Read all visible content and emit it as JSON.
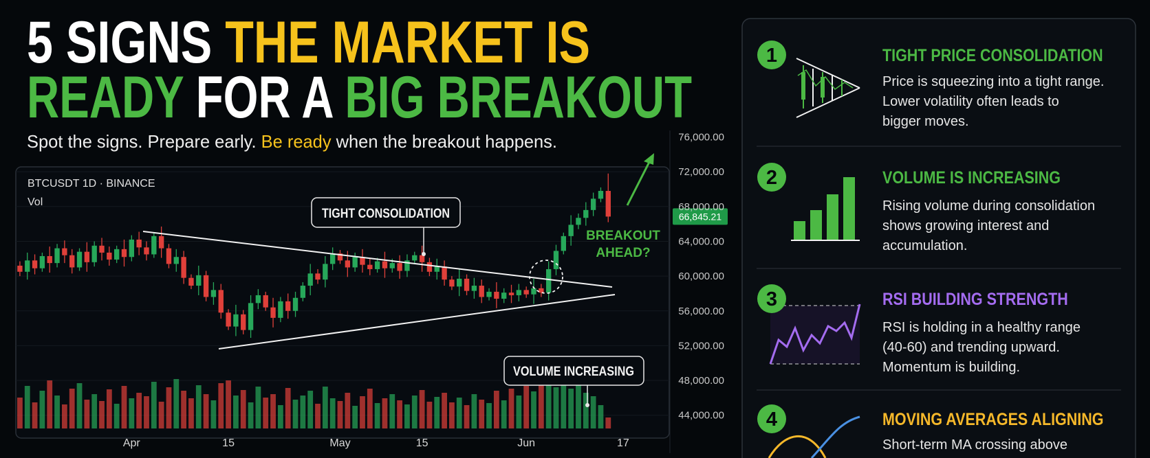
{
  "header": {
    "title": [
      [
        {
          "text": "5 SIGNS ",
          "color": "#ffffff"
        },
        {
          "text": "THE MARKET IS",
          "color": "#f6c21c"
        }
      ],
      [
        {
          "text": "READY",
          "color": "#4cb944"
        },
        {
          "text": " FOR A ",
          "color": "#ffffff"
        },
        {
          "text": "BIG BREAKOUT",
          "color": "#4cb944"
        }
      ]
    ],
    "subtitle": [
      {
        "text": "Spot the signs. Prepare early. ",
        "color": "#eeeeee"
      },
      {
        "text": "Be ready",
        "color": "#f6c21c"
      },
      {
        "text": " when the breakout happens.",
        "color": "#eeeeee"
      }
    ]
  },
  "chart_data": {
    "type": "candlestick",
    "symbol": "BTCUSDT 1D · BINANCE",
    "volume_label": "Vol",
    "up_color": "#27a85a",
    "down_color": "#e0403a",
    "ylim": [
      44000,
      76000
    ],
    "yticks": [
      {
        "value": 44000,
        "label": "44,000.00"
      },
      {
        "value": 48000,
        "label": "48,000.00"
      },
      {
        "value": 52000,
        "label": "52,000.00"
      },
      {
        "value": 56000,
        "label": "56,000.00"
      },
      {
        "value": 60000,
        "label": "60,000.00"
      },
      {
        "value": 64000,
        "label": "64,000.00"
      },
      {
        "value": 68000,
        "label": "68,000.00"
      },
      {
        "value": 72000,
        "label": "72,000.00"
      },
      {
        "value": 76000,
        "label": "76,000.00"
      }
    ],
    "grid": true,
    "last_price": {
      "value": 66845.21,
      "label": "66,845.21"
    },
    "annotations": {
      "consolidation": "TIGHT CONSOLIDATION",
      "volume": "VOLUME INCREASING",
      "breakout": [
        "BREAKOUT",
        "AHEAD?"
      ]
    },
    "categories": [
      null,
      null,
      null,
      null,
      null,
      null,
      null,
      null,
      null,
      null,
      null,
      null,
      null,
      null,
      null,
      "Apr",
      null,
      null,
      null,
      null,
      null,
      null,
      null,
      null,
      null,
      null,
      null,
      null,
      "15",
      null,
      null,
      null,
      null,
      null,
      null,
      null,
      null,
      null,
      null,
      null,
      null,
      null,
      null,
      "May",
      null,
      null,
      null,
      null,
      null,
      null,
      null,
      null,
      null,
      null,
      "15",
      null,
      null,
      null,
      null,
      null,
      null,
      null,
      null,
      null,
      null,
      null,
      null,
      null,
      "Jun",
      null,
      null,
      null,
      null,
      null,
      null,
      null,
      null,
      null,
      null,
      null,
      null,
      "17",
      null,
      null
    ],
    "open": [
      61200,
      60500,
      61800,
      60900,
      62300,
      61500,
      63200,
      62400,
      61000,
      62800,
      61600,
      63500,
      62700,
      61900,
      63100,
      62200,
      64200,
      63300,
      62500,
      64600,
      63200,
      61400,
      62200,
      59800,
      58900,
      60100,
      57600,
      58400,
      55800,
      54200,
      55600,
      53800,
      56900,
      57800,
      56400,
      55200,
      57100,
      56000,
      57500,
      58900,
      60300,
      59600,
      61400,
      62600,
      61800,
      61000,
      62200,
      61300,
      60800,
      61700,
      60900,
      61500,
      60600,
      61800,
      62400,
      61600,
      60500,
      61100,
      59600,
      58800,
      59700,
      58300,
      58900,
      57600,
      58200,
      57400,
      58100,
      57800,
      58400,
      57900,
      58600,
      58100,
      60800,
      62900,
      64600,
      65900,
      66700,
      67600,
      68900,
      69800,
      null,
      null,
      null,
      null
    ],
    "high": [
      61700,
      62700,
      62500,
      62700,
      63400,
      63700,
      64100,
      63100,
      63200,
      63900,
      64000,
      64400,
      63400,
      63500,
      64200,
      64700,
      65100,
      64000,
      65000,
      65700,
      63700,
      63100,
      62900,
      60200,
      61200,
      60600,
      59300,
      59100,
      56200,
      56700,
      56100,
      57800,
      58500,
      58200,
      57500,
      57600,
      58000,
      58200,
      59300,
      61400,
      60800,
      62300,
      63300,
      63000,
      62900,
      62700,
      63100,
      62000,
      62100,
      62800,
      62000,
      62400,
      62500,
      62800,
      63500,
      62100,
      62000,
      61800,
      60000,
      60800,
      60200,
      59800,
      59600,
      58600,
      59300,
      58600,
      59000,
      59100,
      58800,
      59700,
      59100,
      61700,
      63600,
      65000,
      67000,
      67200,
      68500,
      69600,
      70200,
      71800,
      null,
      null,
      null,
      null
    ],
    "low": [
      60000,
      59600,
      60200,
      60500,
      60400,
      61000,
      61500,
      60300,
      60600,
      60500,
      61100,
      61800,
      61200,
      61500,
      61100,
      61700,
      62400,
      61800,
      62100,
      62100,
      60900,
      60500,
      59100,
      58500,
      57800,
      57100,
      56700,
      55100,
      53800,
      53100,
      53300,
      52900,
      56200,
      56000,
      54100,
      54700,
      55100,
      55300,
      57100,
      57800,
      59100,
      58700,
      60700,
      61400,
      59900,
      60500,
      60400,
      60100,
      60400,
      59800,
      60400,
      59700,
      59900,
      61400,
      60500,
      60000,
      59600,
      58900,
      58400,
      57700,
      57800,
      57400,
      56900,
      57200,
      56300,
      56900,
      56900,
      57100,
      57500,
      56800,
      57600,
      57200,
      60100,
      62500,
      63500,
      65400,
      65800,
      66900,
      68500,
      66200,
      null,
      null,
      null,
      null
    ],
    "close": [
      60500,
      61800,
      60900,
      62300,
      61500,
      63200,
      62400,
      61000,
      62800,
      61600,
      63500,
      62700,
      61900,
      63100,
      62200,
      64200,
      63300,
      62500,
      64600,
      63200,
      61400,
      62200,
      59800,
      58900,
      60100,
      57600,
      58400,
      55800,
      54200,
      55600,
      53800,
      56900,
      57800,
      56400,
      55200,
      57100,
      56000,
      57500,
      58900,
      60300,
      59600,
      61400,
      62600,
      61800,
      61000,
      62200,
      61300,
      60800,
      61700,
      60900,
      61500,
      60600,
      61800,
      62400,
      61600,
      60500,
      61100,
      59600,
      58800,
      59700,
      58300,
      58900,
      57600,
      58200,
      57400,
      58100,
      57800,
      58400,
      57900,
      58600,
      58100,
      60800,
      62900,
      64600,
      65900,
      66700,
      67600,
      68900,
      69800,
      66845.21,
      null,
      null,
      null,
      null
    ],
    "volume": [
      45,
      62,
      38,
      55,
      70,
      48,
      35,
      58,
      66,
      42,
      50,
      40,
      57,
      36,
      62,
      44,
      52,
      47,
      68,
      39,
      60,
      72,
      55,
      44,
      63,
      50,
      41,
      66,
      70,
      48,
      56,
      38,
      61,
      45,
      50,
      34,
      59,
      42,
      48,
      55,
      36,
      61,
      44,
      40,
      52,
      33,
      47,
      58,
      37,
      44,
      50,
      41,
      35,
      48,
      56,
      39,
      46,
      52,
      38,
      45,
      34,
      50,
      42,
      37,
      55,
      41,
      58,
      48,
      62,
      54,
      70,
      76,
      60,
      72,
      58,
      66,
      52,
      47,
      34,
      16,
      null,
      null,
      null,
      null
    ]
  },
  "cards": [
    {
      "number": "1",
      "title": "TIGHT PRICE CONSOLIDATION",
      "title_color": "#4cb944",
      "lines": [
        "Price is squeezing into a tight range.",
        "Lower volatility often leads to",
        "bigger moves."
      ]
    },
    {
      "number": "2",
      "title": "VOLUME IS INCREASING",
      "title_color": "#4cb944",
      "lines": [
        "Rising volume during consolidation",
        "shows growing interest and",
        "accumulation."
      ]
    },
    {
      "number": "3",
      "title": "RSI BUILDING STRENGTH",
      "title_color": "#a46cf0",
      "lines": [
        "RSI is holding in a healthy range",
        "(40-60) and trending upward.",
        "Momentum is building."
      ]
    },
    {
      "number": "4",
      "title": "MOVING AVERAGES ALIGNING",
      "title_color": "#f6b82a",
      "lines": [
        "Short-term MA crossing above"
      ]
    }
  ]
}
